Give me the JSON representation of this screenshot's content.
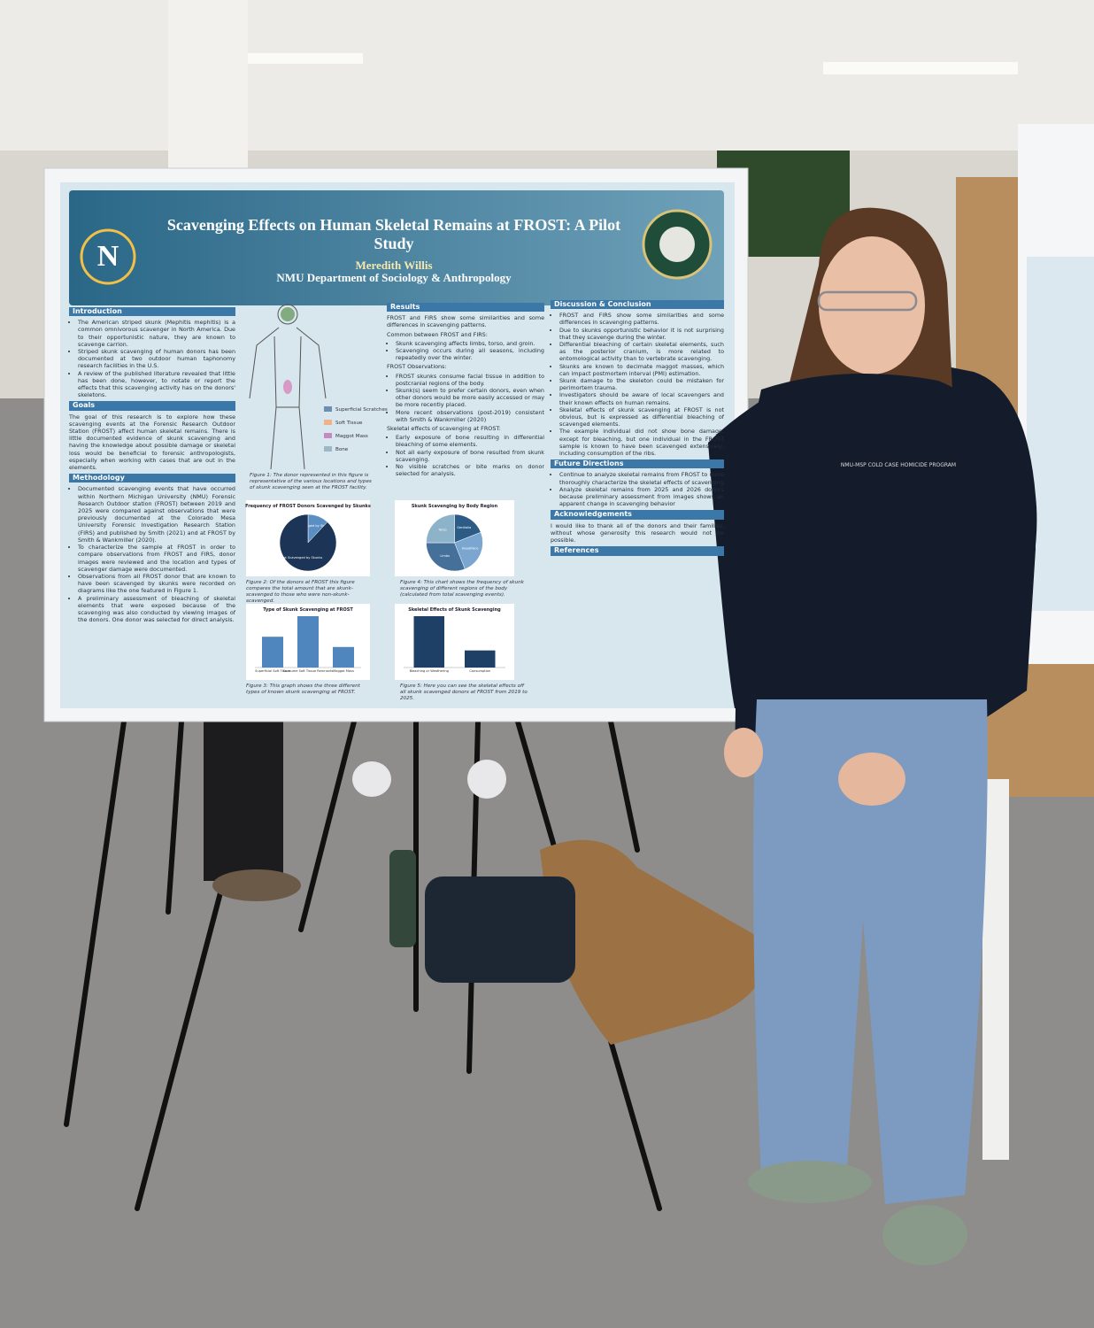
{
  "poster": {
    "title": "Scavenging Effects on Human Skeletal Remains at FROST: A Pilot Study",
    "author": "Meredith Willis",
    "department": "NMU Department of Sociology & Anthropology",
    "left": [
      {
        "heading": "Introduction",
        "blocks": [
          {
            "bullets": [
              "The American striped skunk (Mephitis mephitis) is a common omnivorous scavenger in North America. Due to their opportunistic nature, they are known to scavenge carrion.",
              "Striped skunk scavenging of human donors has been documented at two outdoor human taphonomy research facilities in the U.S.",
              "A review of the published literature revealed that little has been done, however, to notate or report the effects that this scavenging activity has on the donors' skeletons."
            ]
          }
        ]
      },
      {
        "heading": "Goals",
        "blocks": [
          {
            "lead": "The goal of this research is to explore how these scavenging events at the Forensic Research Outdoor Station (FROST) affect human skeletal remains. There is little documented evidence of skunk scavenging and having the knowledge about possible damage or skeletal loss would be beneficial to forensic anthropologists, especially when working with cases that are out in the elements."
          }
        ]
      },
      {
        "heading": "Methodology",
        "blocks": [
          {
            "bullets": [
              "Documented scavenging events that have occurred within Northern Michigan University (NMU) Forensic Research Outdoor station (FROST) between 2019 and 2025 were compared against observations that were previously documented at the Colorado Mesa University Forensic Investigation Research Station (FIRS) and published by Smith (2021) and at FROST by Smith & Wankmiller (2020).",
              "To characterize the sample at FROST in order to compare observations from FROST and FIRS, donor images were reviewed and the location and types of scavenger damage were documented.",
              "Observations from all FROST donor that are known to have been scavenged by skunks were recorded on diagrams like the one featured in Figure 1.",
              "A preliminary assessment of bleaching of skeletal elements that were exposed because of the scavenging was also conducted by viewing images of the donors. One donor was selected for direct analysis."
            ]
          }
        ]
      }
    ],
    "results": [
      {
        "heading": "Results",
        "blocks": [
          {
            "lead": "FROST and FIRS show some similarities and some differences in scavenging patterns."
          },
          {
            "lead": "Common between FROST and FIRS:",
            "bullets": [
              "Skunk scavenging affects limbs, torso, and groin.",
              "Scavenging occurs during all seasons, including repeatedly over the winter."
            ]
          },
          {
            "lead": "FROST Observations:",
            "bullets": [
              "FROST skunks consume facial tissue in addition to postcranial regions of the body.",
              "Skunk(s) seem to prefer certain donors, even when other donors would be more easily accessed or may be more recently placed.",
              "More recent observations (post-2019) consistent with Smith & Wankmiller (2020)"
            ]
          },
          {
            "lead": "Skeletal effects of scavenging at FROST:",
            "bullets": [
              "Early exposure of bone resulting in differential bleaching of some elements.",
              "Not all early exposure of bone resulted from skunk scavenging.",
              "No visible scratches or bite marks on donor selected for analysis."
            ]
          }
        ]
      }
    ],
    "right": [
      {
        "heading": "Discussion & Conclusion",
        "blocks": [
          {
            "bullets": [
              "FROST and FIRS show some similarities and some differences in scavenging patterns.",
              "Due to skunks opportunistic behavior it is not surprising that they scavenge during the winter.",
              "Differential bleaching of certain skeletal elements, such as the posterior cranium, is more related to entomological activity than to vertebrate scavenging.",
              "Skunks are known to decimate maggot masses, which can impact postmortem interval (PMI) estimation.",
              "Skunk damage to the skeleton could be mistaken for perimortem trauma.",
              "Investigators should be aware of local scavengers and their known effects on human remains.",
              "Skeletal effects of skunk scavenging at FROST is not obvious, but is expressed as differential bleaching of scavenged elements.",
              "The example individual did not show bone damage, except for bleaching, but one individual in the FROST sample is known to have been scavenged extensively, including consumption of the ribs."
            ]
          }
        ]
      },
      {
        "heading": "Future Directions",
        "blocks": [
          {
            "bullets": [
              "Continue to analyze skeletal remains from FROST to more thoroughly characterize the skeletal effects of scavenging",
              "Analyze skeletal remains from 2025 and 2026 donors because preliminary assessment from images shows an apparent change in scavenging behavior"
            ]
          }
        ]
      },
      {
        "heading": "Acknowledgements",
        "blocks": [
          {
            "lead": "I would like to thank all of the donors and their families, without whose generosity this research would not be possible."
          }
        ]
      },
      {
        "heading": "References",
        "blocks": []
      }
    ],
    "figure1": {
      "legend": [
        "Superficial Scratches",
        "Soft Tissue",
        "Maggot Mass",
        "Bone"
      ],
      "caption": "Figure 1: The donor represented in this figure is representative of the various locations and types of skunk scavenging seen at the FROST facility."
    },
    "captions": [
      "Figure 2: Of the donors at FROST this figure compares the total amount that are skunk-scavenged to those who were non-skunk-scavenged.",
      "Figure 4: This chart shows the frequency of skunk scavenging of different regions of the body (calculated from total scavenging events).",
      "Figure 3: This graph shows the three different types of known skunk scavenging at FROST.",
      "Figure 5: Here you can see the skeletal effects off all skunk scavenged donors at FROST from 2019 to 2025."
    ],
    "jacket": "NMU-MSP COLD CASE HOMICIDE PROGRAM"
  },
  "chart_data": [
    {
      "type": "pie",
      "title": "Frequency of FROST Donors Scavenged by Skunks",
      "categories": [
        "Scavenged by Skunks",
        "Not Scavenged by Skunks"
      ],
      "values": [
        12,
        88
      ],
      "colors": [
        "#5b8fc4",
        "#1c3456"
      ]
    },
    {
      "type": "pie",
      "title": "Skunk Scavenging by Body Region",
      "categories": [
        "Genitalia",
        "Head/Face",
        "Limbs",
        "Torso"
      ],
      "values": [
        19,
        25,
        31,
        25
      ],
      "colors": [
        "#2c5c86",
        "#7aa6cf",
        "#45709a",
        "#8cb3c9"
      ]
    },
    {
      "type": "bar",
      "title": "Type of Skunk Scavenging at FROST",
      "categories": [
        "Superficial Soft Tissue",
        "Consume Soft Tissue Remnants",
        "Maggot Mass"
      ],
      "values": [
        3,
        5,
        2
      ],
      "color": "#4f86bd"
    },
    {
      "type": "bar",
      "title": "Skeletal Effects of Skunk Scavenging",
      "categories": [
        "Bleaching or Weathering",
        "Consumption"
      ],
      "values": [
        3,
        1
      ],
      "color": "#1e3f66"
    }
  ]
}
